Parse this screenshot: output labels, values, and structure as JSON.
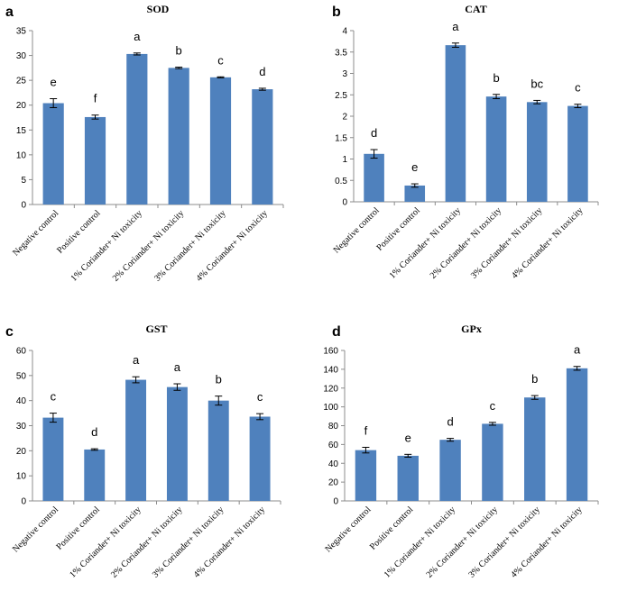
{
  "figure": {
    "description_hidden": false
  },
  "chart_data": [
    {
      "panel": "a",
      "type": "bar",
      "title": "SOD",
      "categories": [
        "Negative control",
        "Positive control",
        "1% Coriander+ Ni toxicity",
        "2% Coriander+ Ni toxicity",
        "3% Coriander+ Ni toxicity",
        "4% Coriander+ Ni toxicity"
      ],
      "values": [
        20.4,
        17.6,
        30.3,
        27.5,
        25.6,
        23.2
      ],
      "errors": [
        0.9,
        0.4,
        0.2,
        0.15,
        0.1,
        0.2
      ],
      "letters": [
        "e",
        "f",
        "a",
        "b",
        "c",
        "d"
      ],
      "ylim": [
        0,
        35
      ],
      "yticks": [
        0,
        5,
        10,
        15,
        20,
        25,
        30,
        35
      ],
      "bar_color": "#4f81bd",
      "xlabel": "",
      "ylabel": ""
    },
    {
      "panel": "b",
      "type": "bar",
      "title": "CAT",
      "categories": [
        "Negative control",
        "Positive control",
        "1% Coriander+ Ni toxicity",
        "2% Coriander+ Ni toxicity",
        "3% Coriander+ Ni toxicity",
        "4% Coriander+ Ni toxicity"
      ],
      "values": [
        1.12,
        0.38,
        3.66,
        2.46,
        2.33,
        2.24
      ],
      "errors": [
        0.1,
        0.04,
        0.05,
        0.05,
        0.04,
        0.04
      ],
      "letters": [
        "d",
        "e",
        "a",
        "b",
        "bc",
        "c"
      ],
      "ylim": [
        0,
        4
      ],
      "yticks": [
        0,
        0.5,
        1,
        1.5,
        2,
        2.5,
        3,
        3.5,
        4
      ],
      "bar_color": "#4f81bd",
      "xlabel": "",
      "ylabel": ""
    },
    {
      "panel": "c",
      "type": "bar",
      "title": "GST",
      "categories": [
        "Negative control",
        "Positive control",
        "1% Coriander+ Ni toxicity",
        "2% Coriander+ Ni toxicity",
        "3% Coriander+ Ni toxicity",
        "4% Coriander+ Ni toxicity"
      ],
      "values": [
        33.2,
        20.5,
        48.3,
        45.4,
        40.0,
        33.6
      ],
      "errors": [
        1.8,
        0.3,
        1.2,
        1.3,
        1.8,
        1.2
      ],
      "letters": [
        "c",
        "d",
        "a",
        "a",
        "b",
        "c"
      ],
      "ylim": [
        0,
        60
      ],
      "yticks": [
        0,
        10,
        20,
        30,
        40,
        50,
        60
      ],
      "bar_color": "#4f81bd",
      "xlabel": "",
      "ylabel": ""
    },
    {
      "panel": "d",
      "type": "bar",
      "title": "GPx",
      "categories": [
        "Negative control",
        "Positive control",
        "1% Coriander+ Ni toxicity",
        "2% Coriander+ Ni toxicity",
        "3% Coriander+ Ni toxicity",
        "4% Coriander+ Ni toxicity"
      ],
      "values": [
        54,
        48,
        65,
        82,
        110,
        141
      ],
      "errors": [
        3,
        1.5,
        1.5,
        1.5,
        2,
        2
      ],
      "letters": [
        "f",
        "e",
        "d",
        "c",
        "b",
        "a"
      ],
      "ylim": [
        0,
        160
      ],
      "yticks": [
        0,
        20,
        40,
        60,
        80,
        100,
        120,
        140,
        160
      ],
      "bar_color": "#4f81bd",
      "xlabel": "",
      "ylabel": ""
    }
  ]
}
